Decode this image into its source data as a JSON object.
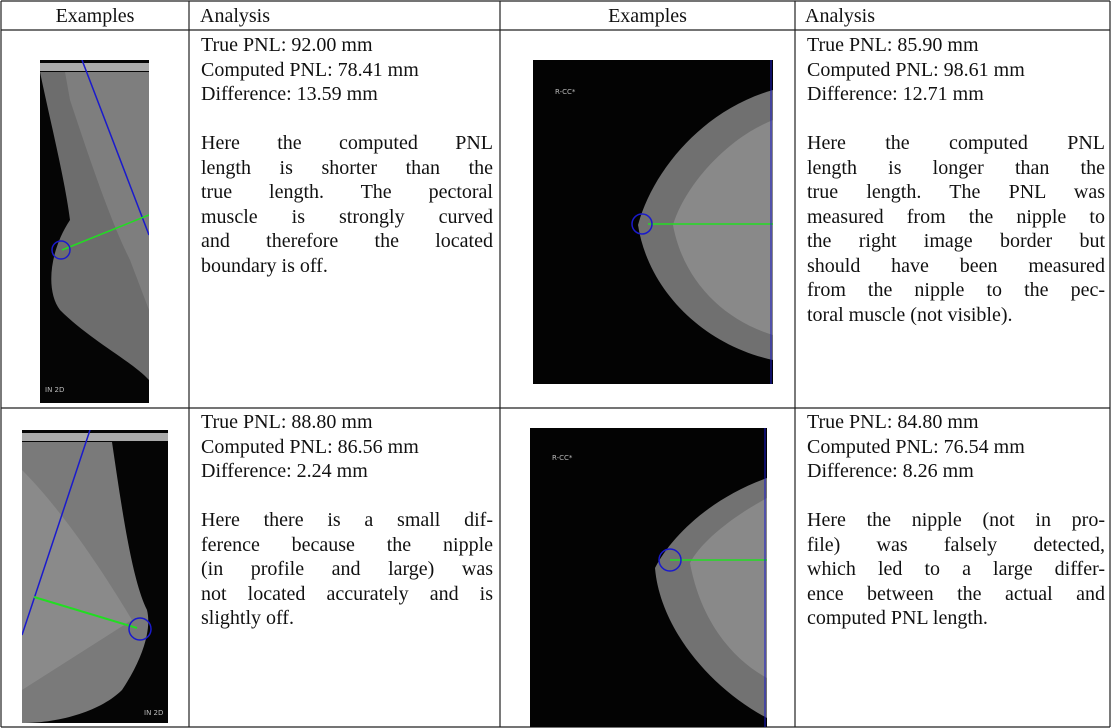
{
  "header": [
    "Examples",
    "Analysis",
    "Examples",
    "Analysis"
  ],
  "rows": [
    [
      {
        "image_label": "IN 2D",
        "true_pnl": "True PNL: 92.00 mm",
        "computed_pnl": "Computed PNL: 78.41 mm",
        "difference": "Difference: 13.59 mm",
        "explanation": [
          "Here the computed PNL",
          "length is shorter than the",
          "true length.  The pectoral",
          "muscle is strongly curved",
          "and therefore the located",
          "boundary is off."
        ]
      },
      {
        "image_label": "R-CC*",
        "true_pnl": "True PNL: 85.90 mm",
        "computed_pnl": "Computed PNL: 98.61 mm",
        "difference": "Difference: 12.71 mm",
        "explanation": [
          "Here the computed PNL",
          "length is longer than the",
          "true length.  The PNL was",
          "measured from the nipple to",
          "the right image border but",
          "should have been measured",
          "from the nipple to the pec-",
          "toral muscle (not visible)."
        ]
      }
    ],
    [
      {
        "image_label": "IN 2D",
        "true_pnl": "True PNL: 88.80 mm",
        "computed_pnl": "Computed PNL: 86.56 mm",
        "difference": "Difference: 2.24 mm",
        "explanation": [
          "Here there is a small dif-",
          "ference because the nipple",
          "(in profile and large) was",
          "not located accurately and is",
          "slightly off."
        ]
      },
      {
        "image_label": "R-CC*",
        "true_pnl": "True PNL: 84.80 mm",
        "computed_pnl": "Computed PNL: 76.54 mm",
        "difference": "Difference: 8.26 mm",
        "explanation": [
          "Here the nipple (not in pro-",
          "file) was falsely detected,",
          "which led to a large differ-",
          "ence between the actual and",
          "computed PNL length."
        ]
      }
    ]
  ]
}
